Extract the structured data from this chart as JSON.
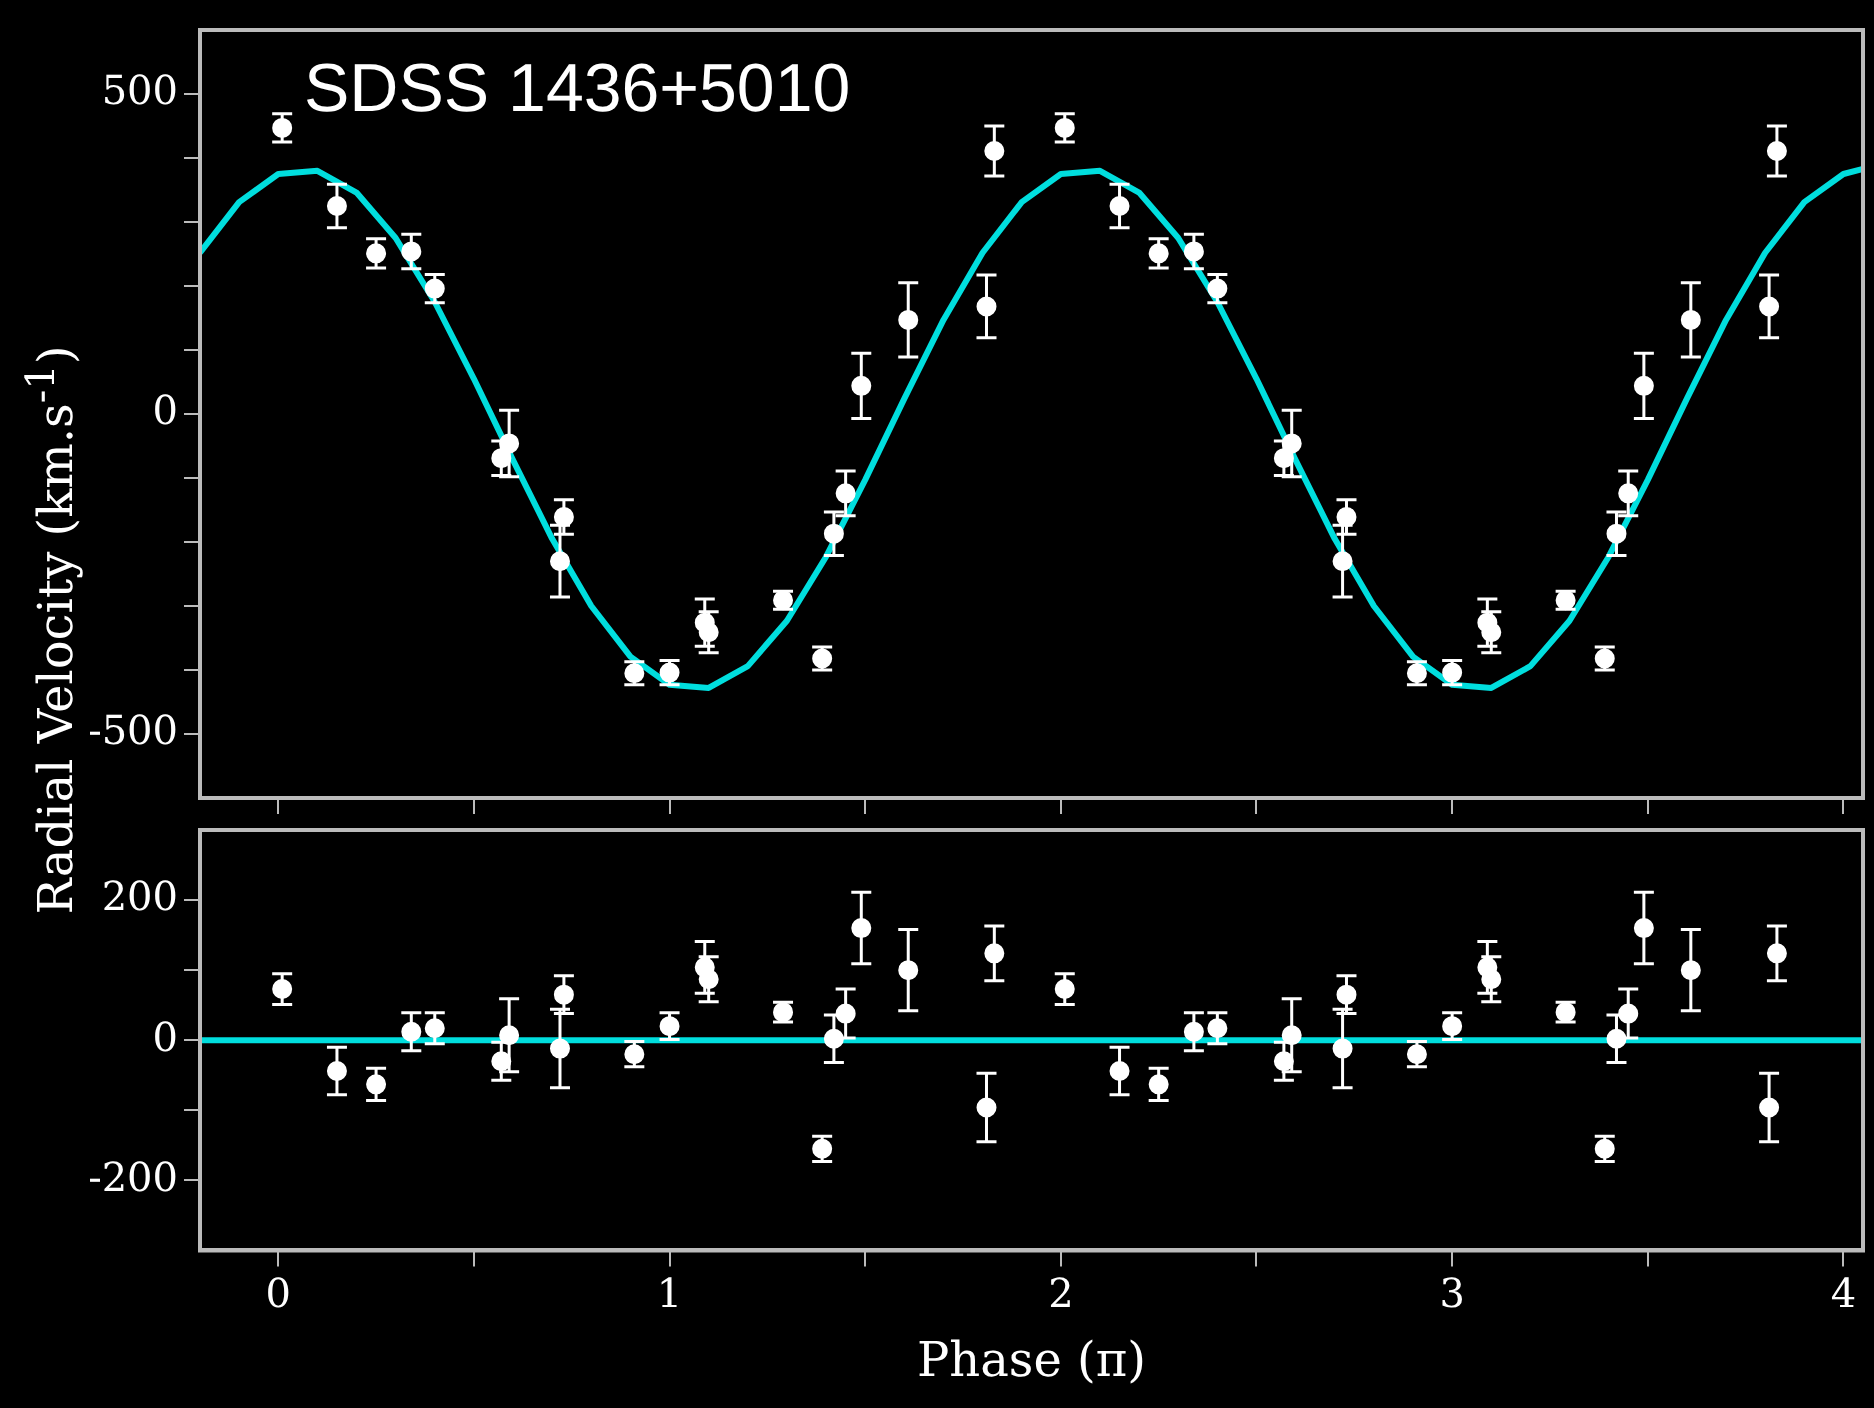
{
  "chart_data": [
    {
      "type": "scatter",
      "ylabel": "Radial Velocity (km.s$^{-1}$)",
      "annotations": [
        "SDSS 1436+5010"
      ],
      "xlim": [
        -0.2,
        4.05
      ],
      "ylim": [
        -600,
        600
      ],
      "tick_labels": "y",
      "xticks": [
        0,
        {
          "value": 0.5,
          "label": null
        },
        1,
        {
          "value": 1.5,
          "label": null
        },
        2,
        {
          "value": 2.5,
          "label": null
        },
        3,
        {
          "value": 3.5,
          "label": null
        },
        4
      ],
      "yticks": [
        -500,
        {
          "value": -400,
          "label": null
        },
        {
          "value": -300,
          "label": null
        },
        {
          "value": -200,
          "label": null
        },
        {
          "value": -100,
          "label": null
        },
        0,
        {
          "value": 100,
          "label": null
        },
        {
          "value": 200,
          "label": null
        },
        {
          "value": 300,
          "label": null
        },
        {
          "value": 400,
          "label": null
        },
        500
      ],
      "series": [
        {
          "type": "scatter",
          "marker": "circle",
          "color": "#ffffff",
          "x": [
            0.01,
            0.15,
            0.25,
            0.34,
            0.4,
            0.57,
            0.59,
            0.72,
            0.73,
            0.91,
            1.0,
            1.09,
            1.1,
            1.29,
            1.39,
            1.42,
            1.45,
            1.49,
            1.61,
            1.81,
            1.83,
            2.01,
            2.15,
            2.25,
            2.34,
            2.4,
            2.57,
            2.59,
            2.72,
            2.73,
            2.91,
            3.0,
            3.09,
            3.1,
            3.29,
            3.39,
            3.42,
            3.45,
            3.49,
            3.61,
            3.81,
            3.83
          ],
          "values": [
            447,
            325,
            251,
            254,
            196,
            -69,
            -46,
            -230,
            -161,
            -405,
            -404,
            -326,
            -341,
            -291,
            -382,
            -187,
            -124,
            44,
            147,
            168,
            411,
            447,
            325,
            251,
            254,
            196,
            -69,
            -46,
            -230,
            -161,
            -405,
            -404,
            -326,
            -341,
            -291,
            -382,
            -187,
            -124,
            44,
            147,
            168,
            411
          ],
          "errors": [
            22,
            34,
            23,
            27,
            22,
            27,
            52,
            56,
            27,
            18,
            19,
            37,
            32,
            14,
            18,
            34,
            35,
            51,
            58,
            49,
            39,
            22,
            34,
            23,
            27,
            22,
            27,
            52,
            56,
            27,
            18,
            19,
            37,
            32,
            14,
            18,
            34,
            35,
            51,
            58,
            49,
            39
          ]
        },
        {
          "type": "line",
          "marker": "none",
          "color": "#00dede",
          "x": [
            -0.2,
            -0.1,
            0,
            0.1,
            0.2,
            0.3,
            0.4,
            0.5,
            0.6,
            0.7,
            0.8,
            0.9,
            1.0,
            1.1,
            1.2,
            1.3,
            1.4,
            1.5,
            1.6,
            1.7,
            1.8,
            1.9,
            2.0,
            2.1,
            2.2,
            2.3,
            2.4,
            2.5,
            2.6,
            2.7,
            2.8,
            2.9,
            3.0,
            3.1,
            3.2,
            3.3,
            3.4,
            3.5,
            3.6,
            3.7,
            3.8,
            3.9,
            4.0,
            4.05
          ],
          "values": [
            252,
            331,
            375,
            380,
            346,
            275,
            175,
            55,
            -72,
            -195,
            -300,
            -379,
            -423,
            -428,
            -394,
            -323,
            -223,
            -103,
            24,
            147,
            252,
            331,
            375,
            380,
            346,
            275,
            175,
            55,
            -72,
            -195,
            -300,
            -379,
            -423,
            -428,
            -394,
            -323,
            -223,
            -103,
            24,
            147,
            252,
            331,
            375,
            383
          ]
        }
      ]
    },
    {
      "type": "scatter",
      "xlabel": "Phase (π)",
      "xlim": [
        -0.2,
        4.05
      ],
      "ylim": [
        -300,
        300
      ],
      "xticks": [
        0,
        {
          "value": 0.5,
          "label": null
        },
        1,
        {
          "value": 1.5,
          "label": null
        },
        2,
        {
          "value": 2.5,
          "label": null
        },
        3,
        {
          "value": 3.5,
          "label": null
        },
        4
      ],
      "yticks": [
        -200,
        {
          "value": -100,
          "label": null
        },
        0,
        {
          "value": 100,
          "label": null
        },
        200
      ],
      "series": [
        {
          "type": "scatter",
          "marker": "circle",
          "color": "#ffffff",
          "x": [
            0.01,
            0.15,
            0.25,
            0.34,
            0.4,
            0.57,
            0.59,
            0.72,
            0.73,
            0.91,
            1.0,
            1.09,
            1.1,
            1.29,
            1.39,
            1.42,
            1.45,
            1.49,
            1.61,
            1.81,
            1.83,
            2.01,
            2.15,
            2.25,
            2.34,
            2.4,
            2.57,
            2.59,
            2.72,
            2.73,
            2.91,
            3.0,
            3.09,
            3.1,
            3.29,
            3.39,
            3.42,
            3.45,
            3.49,
            3.61,
            3.81,
            3.83
          ],
          "values": [
            73,
            -44,
            -63,
            12,
            17,
            -30,
            7,
            -12,
            65,
            -20,
            20,
            104,
            87,
            40,
            -155,
            2,
            38,
            160,
            100,
            -96,
            124,
            73,
            -44,
            -63,
            12,
            17,
            -30,
            7,
            -12,
            65,
            -20,
            20,
            104,
            87,
            40,
            -155,
            2,
            38,
            160,
            100,
            -96,
            124
          ],
          "errors": [
            22,
            34,
            23,
            27,
            22,
            27,
            52,
            56,
            27,
            18,
            19,
            37,
            32,
            14,
            18,
            34,
            35,
            51,
            58,
            49,
            39,
            22,
            34,
            23,
            27,
            22,
            27,
            52,
            56,
            27,
            18,
            19,
            37,
            32,
            14,
            18,
            34,
            35,
            51,
            58,
            49,
            39
          ]
        },
        {
          "type": "line",
          "marker": "none",
          "color": "#00dede",
          "x": [
            -0.2,
            4.05
          ],
          "values": [
            0,
            0
          ]
        }
      ]
    }
  ]
}
